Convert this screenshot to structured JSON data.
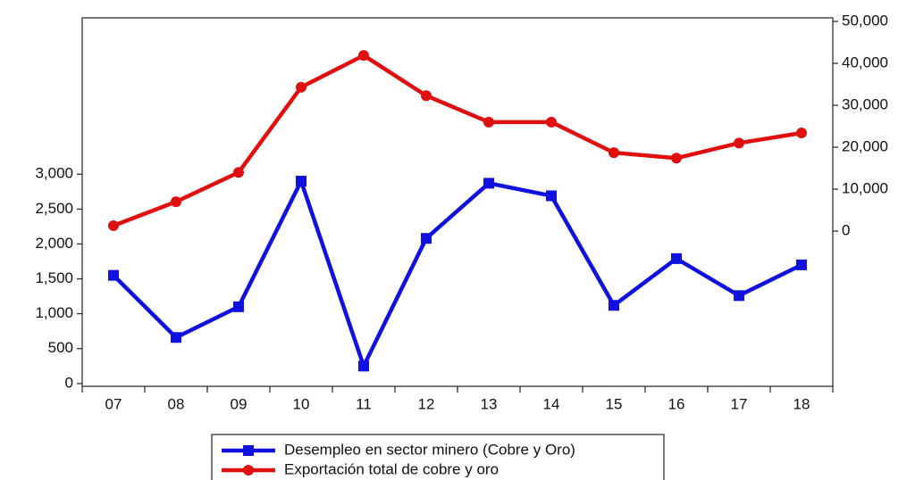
{
  "chart_data": {
    "type": "line",
    "categories": [
      "07",
      "08",
      "09",
      "10",
      "11",
      "12",
      "13",
      "14",
      "15",
      "16",
      "17",
      "18"
    ],
    "series": [
      {
        "name": "Desempleo en sector minero (Cobre y Oro)",
        "color": "#1010e0",
        "marker": "square",
        "values": [
          1550,
          660,
          1100,
          2900,
          250,
          2080,
          2870,
          2690,
          1120,
          1790,
          1260,
          1700
        ]
      },
      {
        "name": "Exportación total de cobre y oro",
        "color": "#e01010",
        "marker": "circle",
        "axis": "y2",
        "values": [
          1300,
          7000,
          14000,
          34300,
          41900,
          32300,
          26000,
          26000,
          18700,
          17400,
          21000,
          23400
        ]
      }
    ],
    "ylim": [
      -40,
      5240
    ],
    "yticks": [
      0,
      500,
      {
        "value": 1000,
        "label": "1,000"
      },
      {
        "value": 1500,
        "label": "1,500"
      },
      {
        "value": 2000,
        "label": "2,000"
      },
      {
        "value": 2500,
        "label": "2,500"
      },
      {
        "value": 3000,
        "label": "3,000"
      }
    ],
    "y2lim": [
      -37000,
      50850
    ],
    "y2ticks": [
      0,
      {
        "value": 10000,
        "label": "10,000"
      },
      {
        "value": 20000,
        "label": "20,000"
      },
      {
        "value": 30000,
        "label": "30,000"
      },
      {
        "value": 40000,
        "label": "40,000"
      },
      {
        "value": 50000,
        "label": "50,000"
      }
    ],
    "legend": "bottom"
  }
}
